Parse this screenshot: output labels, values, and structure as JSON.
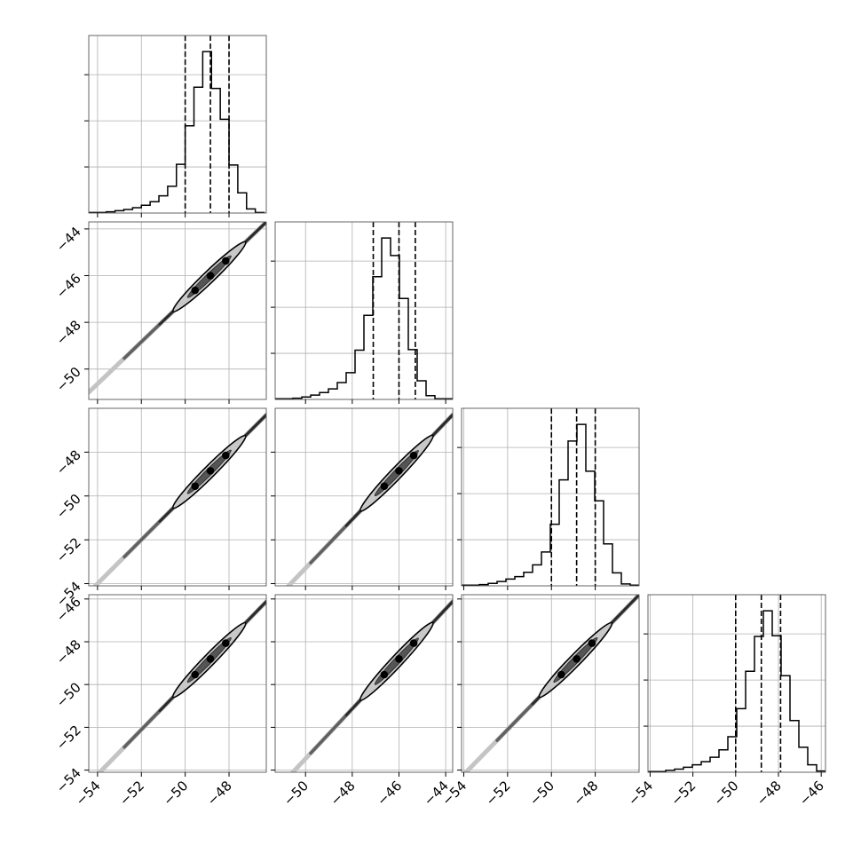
{
  "chart_data": {
    "type": "corner",
    "grid": true,
    "parameters": [
      {
        "range": [
          -54.4,
          -46.3
        ],
        "ticks": [
          -54,
          -52,
          -50,
          -48
        ],
        "quantiles": [
          -50.0,
          -48.85,
          -48.0
        ]
      },
      {
        "range": [
          -51.3,
          -43.7
        ],
        "ticks": [
          -50,
          -48,
          -46,
          -44
        ],
        "quantiles": [
          -47.1,
          -46.0,
          -45.3
        ]
      },
      {
        "range": [
          -54.1,
          -46.0
        ],
        "ticks": [
          -54,
          -52,
          -50,
          -48
        ],
        "quantiles": [
          -50.0,
          -48.85,
          -48.0
        ]
      },
      {
        "range": [
          -54.1,
          -45.8
        ],
        "ticks": [
          -54,
          -52,
          -50,
          -48,
          -46
        ],
        "quantiles": [
          -50.0,
          -48.8,
          -47.9
        ]
      }
    ],
    "histograms": [
      {
        "edges_start": -54.4,
        "bin_width": 0.4,
        "counts": [
          1,
          1,
          2,
          4,
          6,
          9,
          13,
          19,
          29,
          45,
          82,
          147,
          212,
          272,
          210,
          158,
          81,
          34,
          7,
          1
        ]
      },
      {
        "edges_start": -51.3,
        "bin_width": 0.38,
        "counts": [
          1,
          1,
          2,
          4,
          7,
          11,
          17,
          27,
          43,
          79,
          135,
          197,
          259,
          231,
          162,
          80,
          30,
          6,
          1,
          1
        ]
      },
      {
        "edges_start": -54.1,
        "bin_width": 0.405,
        "counts": [
          1,
          1,
          2,
          4,
          7,
          11,
          15,
          22,
          34,
          55,
          100,
          172,
          235,
          262,
          186,
          138,
          68,
          21,
          3,
          1
        ]
      },
      {
        "edges_start": -54.1,
        "bin_width": 0.415,
        "counts": [
          1,
          1,
          3,
          5,
          8,
          12,
          17,
          24,
          36,
          57,
          102,
          162,
          218,
          259,
          219,
          155,
          83,
          40,
          12,
          2
        ]
      }
    ],
    "tick_labels": [
      "−54",
      "−52",
      "−50",
      "−48",
      "−46",
      "−44"
    ]
  }
}
